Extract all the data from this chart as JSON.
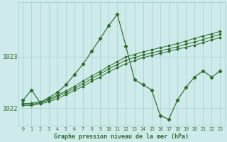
{
  "xlabel": "Graphe pression niveau de la mer (hPa)",
  "xlim": [
    -0.5,
    23.5
  ],
  "ylim": [
    1021.65,
    1024.05
  ],
  "yticks": [
    1022,
    1023
  ],
  "xticks": [
    0,
    1,
    2,
    3,
    4,
    5,
    6,
    7,
    8,
    9,
    10,
    11,
    12,
    13,
    14,
    15,
    16,
    17,
    18,
    19,
    20,
    21,
    22,
    23
  ],
  "background_color": "#ceeaea",
  "grid_color": "#9ecece",
  "line_color": "#2d6e2d",
  "series_main": [
    1022.15,
    1022.35,
    1022.1,
    1022.2,
    1022.3,
    1022.45,
    1022.65,
    1022.85,
    1023.1,
    1023.35,
    1023.6,
    1023.82,
    1023.2,
    1022.55,
    1022.45,
    1022.35,
    1021.85,
    1021.78,
    1022.15,
    1022.4,
    1022.6,
    1022.72,
    1022.6,
    1022.72
  ],
  "series_trend1": [
    1022.05,
    1022.05,
    1022.08,
    1022.12,
    1022.18,
    1022.26,
    1022.34,
    1022.42,
    1022.52,
    1022.6,
    1022.7,
    1022.78,
    1022.86,
    1022.92,
    1022.98,
    1023.02,
    1023.06,
    1023.1,
    1023.14,
    1023.18,
    1023.22,
    1023.27,
    1023.32,
    1023.37
  ],
  "series_trend2": [
    1022.07,
    1022.07,
    1022.1,
    1022.15,
    1022.22,
    1022.3,
    1022.38,
    1022.47,
    1022.57,
    1022.66,
    1022.76,
    1022.84,
    1022.93,
    1022.98,
    1023.03,
    1023.07,
    1023.11,
    1023.15,
    1023.19,
    1023.24,
    1023.28,
    1023.33,
    1023.38,
    1023.43
  ],
  "series_trend3": [
    1022.09,
    1022.09,
    1022.12,
    1022.17,
    1022.25,
    1022.33,
    1022.42,
    1022.52,
    1022.62,
    1022.71,
    1022.81,
    1022.9,
    1022.99,
    1023.04,
    1023.09,
    1023.13,
    1023.17,
    1023.21,
    1023.25,
    1023.3,
    1023.35,
    1023.4,
    1023.44,
    1023.49
  ]
}
